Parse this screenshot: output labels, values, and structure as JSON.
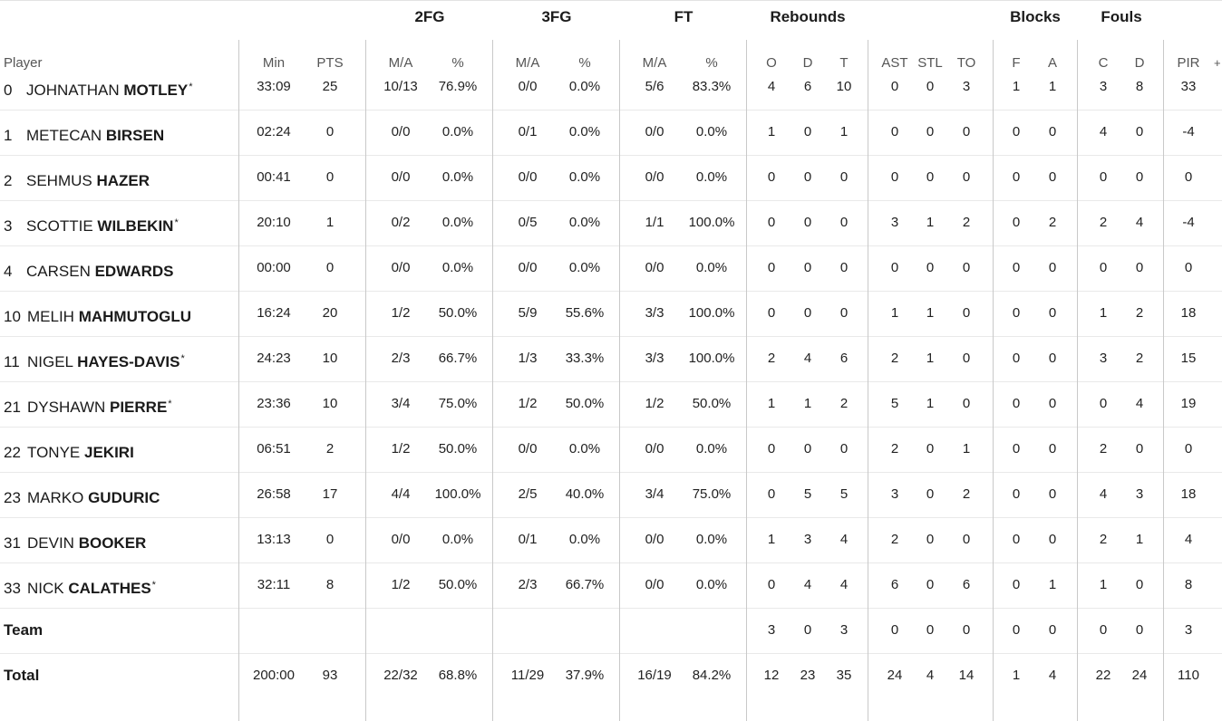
{
  "groups": [
    "2FG",
    "3FG",
    "FT",
    "Rebounds",
    "Blocks",
    "Fouls"
  ],
  "columns": [
    "Player",
    "Min",
    "PTS",
    "M/A",
    "%",
    "M/A",
    "%",
    "M/A",
    "%",
    "O",
    "D",
    "T",
    "AST",
    "STL",
    "TO",
    "F",
    "A",
    "C",
    "D",
    "PIR"
  ],
  "more_columns_icon": "+",
  "players": [
    {
      "num": "0",
      "first": "JOHNATHAN",
      "last": "MOTLEY",
      "starter": "*",
      "stats": [
        "33:09",
        "25",
        "10/13",
        "76.9%",
        "0/0",
        "0.0%",
        "5/6",
        "83.3%",
        "4",
        "6",
        "10",
        "0",
        "0",
        "3",
        "1",
        "1",
        "3",
        "8",
        "33"
      ]
    },
    {
      "num": "1",
      "first": "METECAN",
      "last": "BIRSEN",
      "starter": "",
      "stats": [
        "02:24",
        "0",
        "0/0",
        "0.0%",
        "0/1",
        "0.0%",
        "0/0",
        "0.0%",
        "1",
        "0",
        "1",
        "0",
        "0",
        "0",
        "0",
        "0",
        "4",
        "0",
        "-4"
      ]
    },
    {
      "num": "2",
      "first": "SEHMUS",
      "last": "HAZER",
      "starter": "",
      "stats": [
        "00:41",
        "0",
        "0/0",
        "0.0%",
        "0/0",
        "0.0%",
        "0/0",
        "0.0%",
        "0",
        "0",
        "0",
        "0",
        "0",
        "0",
        "0",
        "0",
        "0",
        "0",
        "0"
      ]
    },
    {
      "num": "3",
      "first": "SCOTTIE",
      "last": "WILBEKIN",
      "starter": "*",
      "stats": [
        "20:10",
        "1",
        "0/2",
        "0.0%",
        "0/5",
        "0.0%",
        "1/1",
        "100.0%",
        "0",
        "0",
        "0",
        "3",
        "1",
        "2",
        "0",
        "2",
        "2",
        "4",
        "-4"
      ]
    },
    {
      "num": "4",
      "first": "CARSEN",
      "last": "EDWARDS",
      "starter": "",
      "stats": [
        "00:00",
        "0",
        "0/0",
        "0.0%",
        "0/0",
        "0.0%",
        "0/0",
        "0.0%",
        "0",
        "0",
        "0",
        "0",
        "0",
        "0",
        "0",
        "0",
        "0",
        "0",
        "0"
      ]
    },
    {
      "num": "10",
      "first": "MELIH",
      "last": "MAHMUTOGLU",
      "starter": "",
      "stats": [
        "16:24",
        "20",
        "1/2",
        "50.0%",
        "5/9",
        "55.6%",
        "3/3",
        "100.0%",
        "0",
        "0",
        "0",
        "1",
        "1",
        "0",
        "0",
        "0",
        "1",
        "2",
        "18"
      ]
    },
    {
      "num": "11",
      "first": "NIGEL",
      "last": "HAYES-DAVIS",
      "starter": "*",
      "stats": [
        "24:23",
        "10",
        "2/3",
        "66.7%",
        "1/3",
        "33.3%",
        "3/3",
        "100.0%",
        "2",
        "4",
        "6",
        "2",
        "1",
        "0",
        "0",
        "0",
        "3",
        "2",
        "15"
      ]
    },
    {
      "num": "21",
      "first": "DYSHAWN",
      "last": "PIERRE",
      "starter": "*",
      "stats": [
        "23:36",
        "10",
        "3/4",
        "75.0%",
        "1/2",
        "50.0%",
        "1/2",
        "50.0%",
        "1",
        "1",
        "2",
        "5",
        "1",
        "0",
        "0",
        "0",
        "0",
        "4",
        "19"
      ]
    },
    {
      "num": "22",
      "first": "TONYE",
      "last": "JEKIRI",
      "starter": "",
      "stats": [
        "06:51",
        "2",
        "1/2",
        "50.0%",
        "0/0",
        "0.0%",
        "0/0",
        "0.0%",
        "0",
        "0",
        "0",
        "2",
        "0",
        "1",
        "0",
        "0",
        "2",
        "0",
        "0"
      ]
    },
    {
      "num": "23",
      "first": "MARKO",
      "last": "GUDURIC",
      "starter": "",
      "stats": [
        "26:58",
        "17",
        "4/4",
        "100.0%",
        "2/5",
        "40.0%",
        "3/4",
        "75.0%",
        "0",
        "5",
        "5",
        "3",
        "0",
        "2",
        "0",
        "0",
        "4",
        "3",
        "18"
      ]
    },
    {
      "num": "31",
      "first": "DEVIN",
      "last": "BOOKER",
      "starter": "",
      "stats": [
        "13:13",
        "0",
        "0/0",
        "0.0%",
        "0/1",
        "0.0%",
        "0/0",
        "0.0%",
        "1",
        "3",
        "4",
        "2",
        "0",
        "0",
        "0",
        "0",
        "2",
        "1",
        "4"
      ]
    },
    {
      "num": "33",
      "first": "NICK",
      "last": "CALATHES",
      "starter": "*",
      "stats": [
        "32:11",
        "8",
        "1/2",
        "50.0%",
        "2/3",
        "66.7%",
        "0/0",
        "0.0%",
        "0",
        "4",
        "4",
        "6",
        "0",
        "6",
        "0",
        "1",
        "1",
        "0",
        "8"
      ]
    }
  ],
  "team": {
    "label": "Team",
    "stats": [
      "",
      "",
      "",
      "",
      "",
      "",
      "",
      "",
      "3",
      "0",
      "3",
      "0",
      "0",
      "0",
      "0",
      "0",
      "0",
      "0",
      "3"
    ]
  },
  "total": {
    "label": "Total",
    "stats": [
      "200:00",
      "93",
      "22/32",
      "68.8%",
      "11/29",
      "37.9%",
      "16/19",
      "84.2%",
      "12",
      "23",
      "35",
      "24",
      "4",
      "14",
      "1",
      "4",
      "22",
      "24",
      "110"
    ]
  }
}
